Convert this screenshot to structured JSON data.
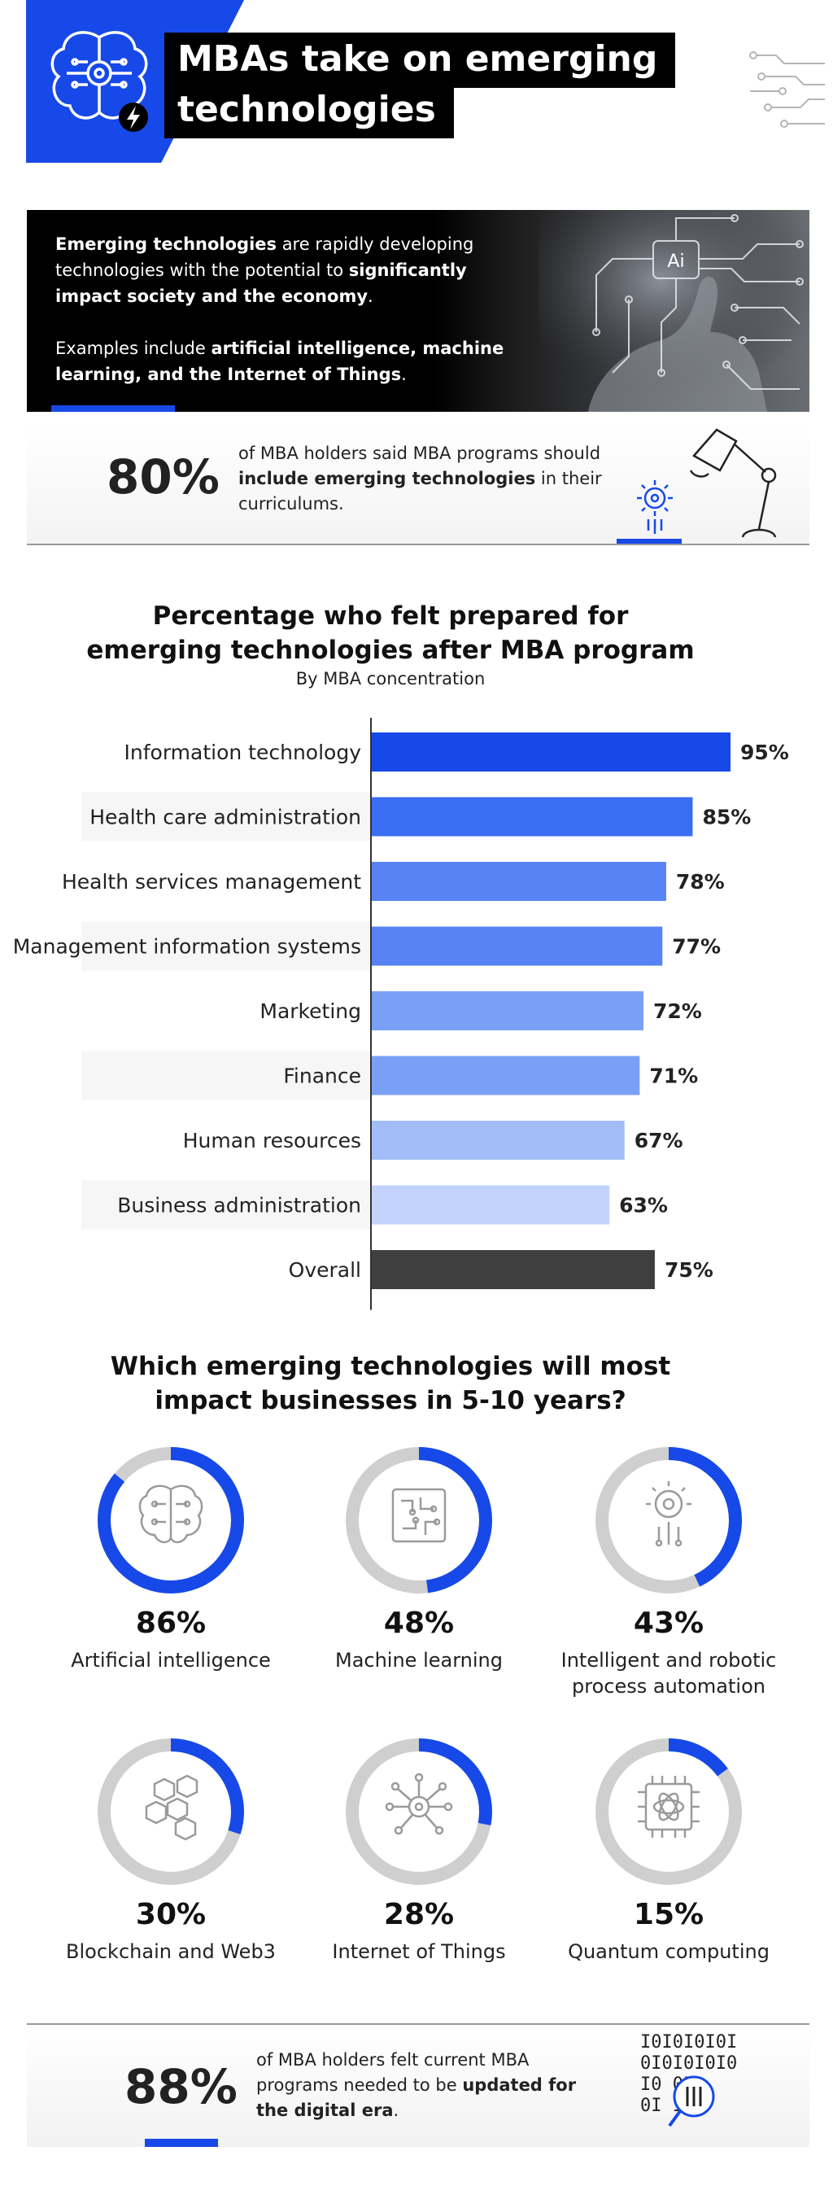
{
  "header": {
    "title_line1": "MBAs take on emerging",
    "title_line2": "technologies"
  },
  "intro": {
    "p1_bold1": "Emerging technologies",
    "p1_text1": " are rapidly developing technologies with the potential to ",
    "p1_bold2": "significantly impact society and the economy",
    "p1_text2": ".",
    "p2_text1": "Examples include ",
    "p2_bold1": "artificial intelligence, machine learning, and the Internet of Things",
    "p2_text2": ".",
    "art_label": "Ai"
  },
  "stat1": {
    "value": "80%",
    "text1": "of MBA holders said MBA programs should ",
    "bold": "include emerging technologies",
    "text2": " in their curriculums."
  },
  "chart_data": {
    "type": "bar",
    "orientation": "horizontal",
    "title": "Percentage who felt prepared for emerging technologies after MBA program",
    "subtitle": "By MBA concentration",
    "categories": [
      "Information technology",
      "Health care administration",
      "Health services management",
      "Management information systems",
      "Marketing",
      "Finance",
      "Human resources",
      "Business administration",
      "Overall"
    ],
    "values": [
      95,
      85,
      78,
      77,
      72,
      71,
      67,
      63,
      75
    ],
    "value_labels": [
      "95%",
      "85%",
      "78%",
      "77%",
      "72%",
      "71%",
      "67%",
      "63%",
      "75%"
    ],
    "colors": [
      "#1749e8",
      "#3a6ef3",
      "#5783f4",
      "#5783f4",
      "#7a9ff6",
      "#7a9ff6",
      "#a3bdf9",
      "#c3d3fb",
      "#3f3f3f"
    ],
    "xlim": [
      0,
      100
    ],
    "grid": false
  },
  "impact": {
    "title": "Which emerging technologies will most impact businesses in 5-10 years?",
    "ring_color": "#1749e8",
    "track_color": "#cfcfcf",
    "items": [
      {
        "value": 86,
        "pct_label": "86%",
        "label": "Artificial intelligence",
        "icon": "brain-icon"
      },
      {
        "value": 48,
        "pct_label": "48%",
        "label": "Machine learning",
        "icon": "circuit-board-icon"
      },
      {
        "value": 43,
        "pct_label": "43%",
        "label": "Intelligent and robotic process automation",
        "icon": "gear-circuit-icon"
      },
      {
        "value": 30,
        "pct_label": "30%",
        "label": "Blockchain and Web3",
        "icon": "blocks-icon"
      },
      {
        "value": 28,
        "pct_label": "28%",
        "label": "Internet of Things",
        "icon": "network-hub-icon"
      },
      {
        "value": 15,
        "pct_label": "15%",
        "label": "Quantum computing",
        "icon": "atom-chip-icon"
      }
    ]
  },
  "stat2": {
    "value": "88%",
    "text1": "of MBA holders felt current MBA programs needed to be ",
    "bold": "updated for the digital era",
    "text2": ".",
    "binary_rows": [
      "I0I0I0I0I",
      "0I0I0I0I0",
      "I0      0I",
      "0I      I0"
    ]
  }
}
